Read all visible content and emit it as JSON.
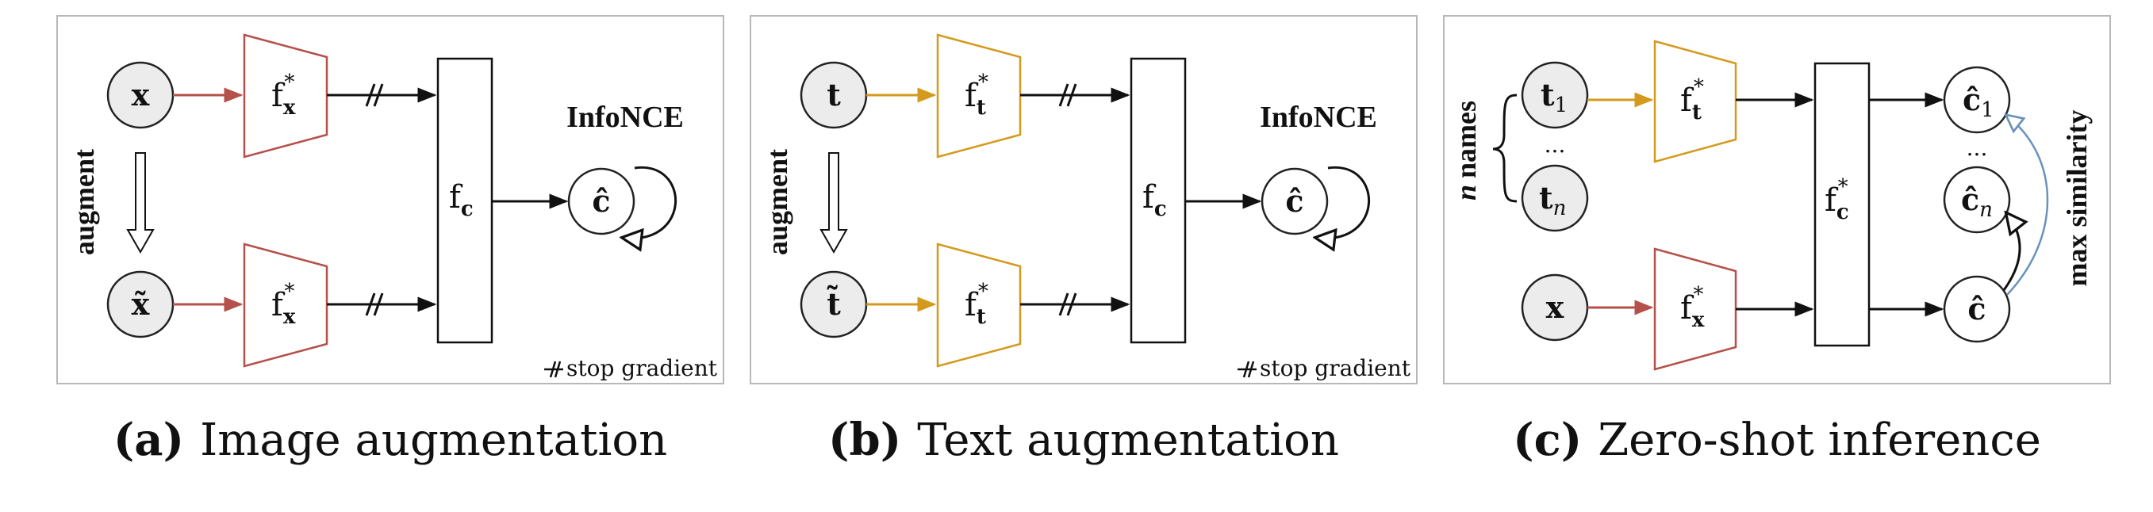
{
  "panels": [
    {
      "input_top": "x",
      "input_bottom": "x̃",
      "encoder_top": "f",
      "encoder_top_sub": "x",
      "encoder_bottom": "f",
      "encoder_bottom_sub": "x",
      "star": "*",
      "fusion": "f",
      "fusion_sub": "c",
      "output": "ĉ",
      "loss": "InfoNCE",
      "side_label": "augment",
      "stop_gradient": "stop gradient",
      "caption_tag": "(a)",
      "caption_text": "Image augmentation"
    },
    {
      "input_top": "t",
      "input_bottom": "t̃",
      "encoder_top": "f",
      "encoder_top_sub": "t",
      "encoder_bottom": "f",
      "encoder_bottom_sub": "t",
      "star": "*",
      "fusion": "f",
      "fusion_sub": "c",
      "output": "ĉ",
      "loss": "InfoNCE",
      "side_label": "augment",
      "stop_gradient": "stop gradient",
      "caption_tag": "(b)",
      "caption_text": "Text augmentation"
    }
  ],
  "panel_c": {
    "t1": "t",
    "t1_sub": "1",
    "tn": "t",
    "tn_sub": "n",
    "dots": "...",
    "names_n": "n",
    "names_word": "names",
    "x": "x",
    "enc_text": "f",
    "enc_text_sub": "t",
    "enc_img": "f",
    "enc_img_sub": "x",
    "star": "*",
    "fusion": "f",
    "fusion_sub": "c",
    "c1": "ĉ",
    "c1_sub": "1",
    "cn": "ĉ",
    "cn_sub": "n",
    "c": "ĉ",
    "max_similarity": "max similarity",
    "caption_tag": "(c)",
    "caption_text": "Zero-shot inference"
  },
  "colors": {
    "image_arrow": "#b5504a",
    "text_arrow": "#d49a1e",
    "similarity_arrow": "#6a93bb",
    "image_encoder": "#b5504a",
    "text_encoder": "#d49a1e"
  }
}
